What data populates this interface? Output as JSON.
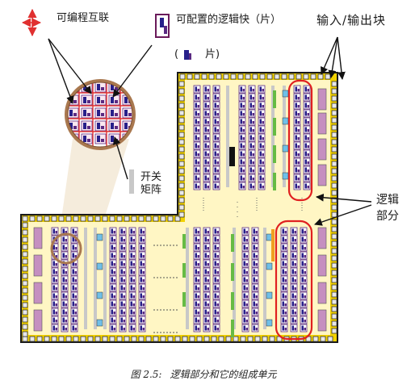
{
  "labels": {
    "interconnect": "可编程互联",
    "config_block": "可配置的逻辑快（片）",
    "slice_open": "(",
    "slice_close": "片)",
    "io_block": "输入/输出块",
    "switch_matrix_1": "开关",
    "switch_matrix_2": "矩阵",
    "logic_part_1": "逻辑",
    "logic_part_2": "部分"
  },
  "caption": {
    "number": "图 2.5:",
    "text": "逻辑部分和它的组成单元"
  },
  "colors": {
    "chip_fill": "#fff6c4",
    "chip_border": "#1a1a1a",
    "io_pad_fill": "#e8e8e8",
    "io_pad_border": "#333333",
    "io_ring": "#f2d200",
    "clb_fill": "#ffffff",
    "clb_blue": "#27208a",
    "clb_border": "#5a2a82",
    "clb_column_bg": "#ffffff",
    "switch_gray": "#c8c8c8",
    "green_bar": "#66bb44",
    "cyan_square": "#6fbfe8",
    "purple_pad": "#c58fc0",
    "highlight_red": "#e02020",
    "magnifier": "#a9784f",
    "arrow_red": "#e03030",
    "arrow_black": "#111111"
  },
  "icons": [
    "cross-arrow-icon",
    "logic-slice-icon"
  ]
}
